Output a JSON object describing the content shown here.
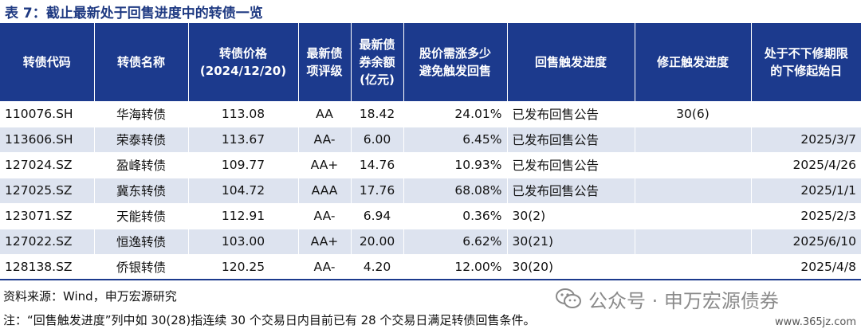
{
  "title": "表 7：截止最新处于回售进度中的转债一览",
  "table": {
    "headers": [
      "转债代码",
      "转债名称",
      "转债价格\n(2024/12/20)",
      "最新债\n项评级",
      "最新债\n券余额\n(亿元)",
      "股价需涨多少\n避免触发回售",
      "回售触发进度",
      "修正触发进度",
      "处于不下修期限\n的下修起始日"
    ],
    "rows": [
      [
        "110076.SH",
        "华海转债",
        "113.08",
        "AA",
        "18.42",
        "24.01%",
        "已发布回售公告",
        "30(6)",
        ""
      ],
      [
        "113606.SH",
        "荣泰转债",
        "113.67",
        "AA-",
        "6.00",
        "6.45%",
        "已发布回售公告",
        "",
        "2025/3/7"
      ],
      [
        "127024.SZ",
        "盈峰转债",
        "109.77",
        "AA+",
        "14.76",
        "10.93%",
        "已发布回售公告",
        "",
        "2025/4/26"
      ],
      [
        "127025.SZ",
        "冀东转债",
        "104.72",
        "AAA",
        "17.76",
        "68.08%",
        "已发布回售公告",
        "",
        "2025/1/1"
      ],
      [
        "123071.SZ",
        "天能转债",
        "112.91",
        "AA-",
        "6.94",
        "0.36%",
        "30(2)",
        "",
        "2025/2/3"
      ],
      [
        "127022.SZ",
        "恒逸转债",
        "103.00",
        "AA+",
        "20.00",
        "6.62%",
        "30(21)",
        "",
        "2025/6/10"
      ],
      [
        "128138.SZ",
        "侨银转债",
        "120.25",
        "AA-",
        "4.20",
        "12.00%",
        "30(20)",
        "",
        "2025/4/8"
      ]
    ]
  },
  "source": "资料来源：Wind，申万宏源研究",
  "note": "注：“回售触发进度”列中如 30(28)指连续 30 个交易日内目前已有 28 个交易日满足转债回售条件。",
  "watermark": {
    "icon": "wechat-icon",
    "text": "公众号 · 申万宏源债券",
    "site": "www.365jz.com"
  },
  "colors": {
    "header_bg": "#1c3a8d",
    "title": "#1f3a82",
    "stripe": "#dde3ef"
  }
}
